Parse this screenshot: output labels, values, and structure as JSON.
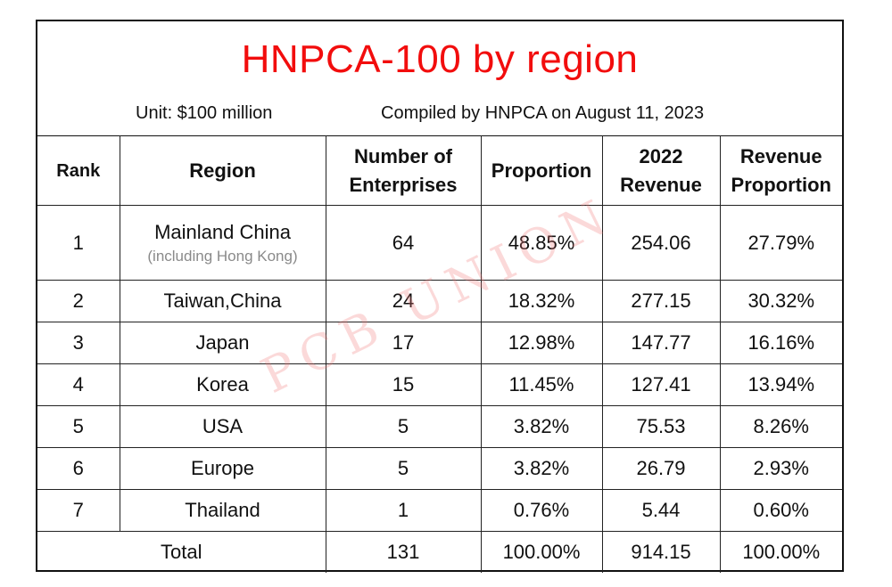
{
  "title": "HNPCA-100 by region",
  "unit": "Unit: $100 million",
  "compiled": "Compiled by HNPCA on August 11, 2023",
  "watermark": "PCB UNION",
  "headers": {
    "rank": "Rank",
    "region": "Region",
    "enterprises_1": "Number of",
    "enterprises_2": "Enterprises",
    "proportion": "Proportion",
    "revenue_1": "2022",
    "revenue_2": "Revenue",
    "rev_prop_1": "Revenue",
    "rev_prop_2": "Proportion"
  },
  "rows": [
    {
      "rank": "1",
      "region": "Mainland China",
      "region_note": "(including Hong Kong)",
      "enterprises": "64",
      "proportion": "48.85%",
      "revenue": "254.06",
      "revenue_proportion": "27.79%"
    },
    {
      "rank": "2",
      "region": "Taiwan,China",
      "enterprises": "24",
      "proportion": "18.32%",
      "revenue": "277.15",
      "revenue_proportion": "30.32%"
    },
    {
      "rank": "3",
      "region": "Japan",
      "enterprises": "17",
      "proportion": "12.98%",
      "revenue": "147.77",
      "revenue_proportion": "16.16%"
    },
    {
      "rank": "4",
      "region": "Korea",
      "enterprises": "15",
      "proportion": "11.45%",
      "revenue": "127.41",
      "revenue_proportion": "13.94%"
    },
    {
      "rank": "5",
      "region": "USA",
      "enterprises": "5",
      "proportion": "3.82%",
      "revenue": "75.53",
      "revenue_proportion": "8.26%"
    },
    {
      "rank": "6",
      "region": "Europe",
      "enterprises": "5",
      "proportion": "3.82%",
      "revenue": "26.79",
      "revenue_proportion": "2.93%"
    },
    {
      "rank": "7",
      "region": "Thailand",
      "enterprises": "1",
      "proportion": "0.76%",
      "revenue": "5.44",
      "revenue_proportion": "0.60%"
    }
  ],
  "total": {
    "label": "Total",
    "enterprises": "131",
    "proportion": "100.00%",
    "revenue": "914.15",
    "revenue_proportion": "100.00%"
  },
  "colors": {
    "title": "#f20d0d",
    "border": "#111111",
    "note": "#8a8a8a",
    "watermark": "#f07878"
  }
}
